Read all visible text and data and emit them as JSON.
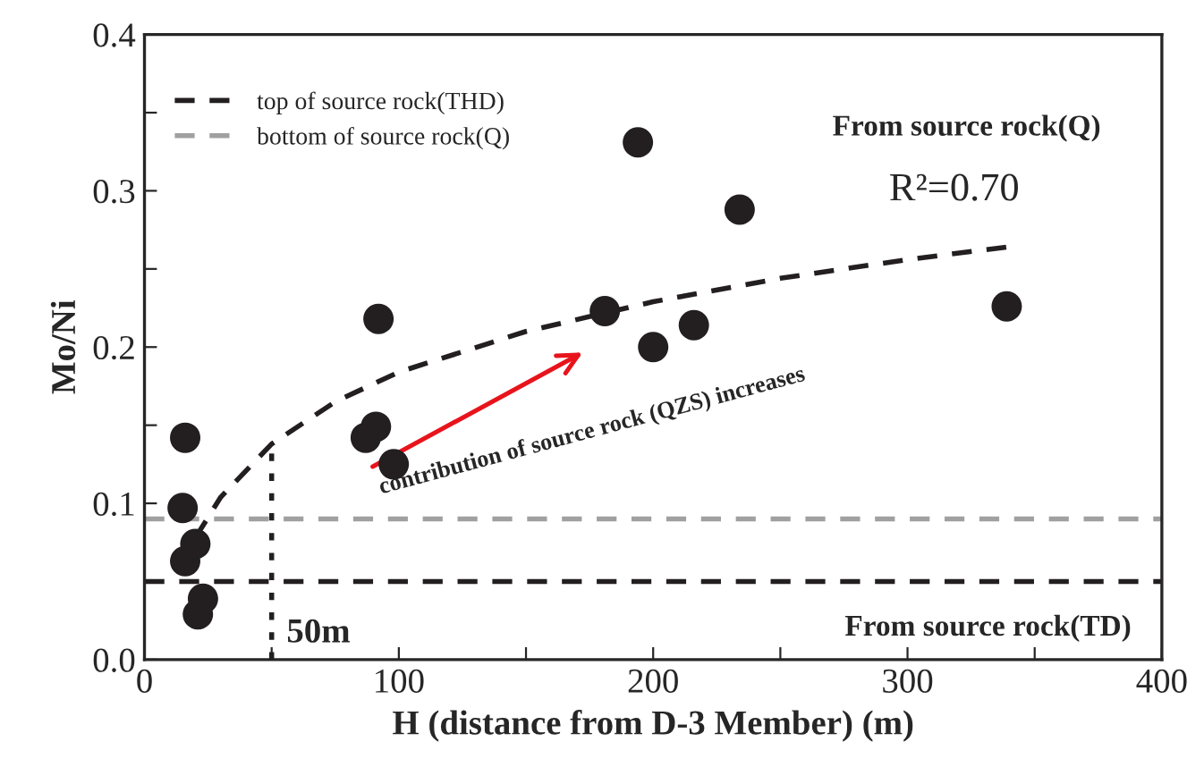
{
  "chart_data": {
    "type": "scatter",
    "xlabel": "H (distance from D-3 Member) (m)",
    "ylabel": "Mo/Ni",
    "xlim": [
      0,
      400
    ],
    "ylim": [
      0,
      0.4
    ],
    "xticks": [
      0,
      {
        "value": 50,
        "label": null
      },
      100,
      {
        "value": 150,
        "label": null
      },
      200,
      {
        "value": 250,
        "label": null
      },
      300,
      {
        "value": 350,
        "label": null
      },
      400
    ],
    "yticks": [
      {
        "value": 0.0,
        "label": "0.0"
      },
      {
        "value": 0.05,
        "label": null
      },
      {
        "value": 0.1,
        "label": "0.1"
      },
      {
        "value": 0.15,
        "label": null
      },
      {
        "value": 0.2,
        "label": "0.2"
      },
      {
        "value": 0.25,
        "label": null
      },
      {
        "value": 0.3,
        "label": "0.3"
      },
      {
        "value": 0.35,
        "label": null
      },
      {
        "value": 0.4,
        "label": "0.4"
      }
    ],
    "grid": false,
    "legend": "top left",
    "series": [
      {
        "color": "#231f20",
        "marker": "circle",
        "x": [
          16,
          15,
          16,
          20,
          23,
          21,
          87,
          91,
          92,
          98,
          181,
          194,
          200,
          216,
          234,
          339
        ],
        "values": [
          0.142,
          0.097,
          0.063,
          0.074,
          0.039,
          0.029,
          0.142,
          0.149,
          0.218,
          0.125,
          0.223,
          0.331,
          0.2,
          0.214,
          0.288,
          0.226
        ]
      },
      {
        "type": "line",
        "color": "#231f20",
        "line_style": "dashed",
        "x": [
          20,
          30,
          50,
          75,
          100,
          150,
          200,
          250,
          300,
          339
        ],
        "values": [
          0.078,
          0.104,
          0.138,
          0.165,
          0.184,
          0.21,
          0.229,
          0.244,
          0.256,
          0.264
        ]
      },
      {
        "type": "line",
        "color": "#231f20",
        "line_style": "dotted",
        "x": [
          50,
          50
        ],
        "values": [
          0,
          0.138
        ]
      }
    ],
    "ref_lines": [
      {
        "axis": "y",
        "value": 0.05,
        "label": "top of source rock(THD)",
        "color": "#231f20",
        "line_style": "dashed"
      },
      {
        "axis": "y",
        "value": 0.09,
        "label": "bottom of source rock(Q)",
        "color": "#a0a0a0",
        "line_style": "dashed"
      }
    ],
    "annotations": [
      "From source rock(Q)",
      "R²=0.70",
      "From source rock(TD)",
      {
        "text": "50m",
        "x": 50,
        "y": 0
      },
      "contribution of source rock (QZS) increases"
    ]
  }
}
